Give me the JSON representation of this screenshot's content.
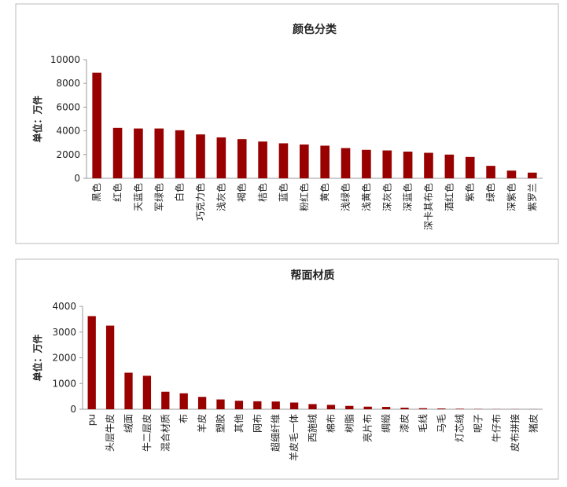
{
  "chart_data": [
    {
      "type": "bar",
      "title": "颜色分类",
      "y_label": "单位：万件",
      "color": "#990000",
      "categories": [
        "黑色",
        "红色",
        "天蓝色",
        "军绿色",
        "白色",
        "巧克力色",
        "浅灰色",
        "褐色",
        "桔色",
        "蓝色",
        "粉红色",
        "黄色",
        "浅绿色",
        "浅黄色",
        "深灰色",
        "深蓝色",
        "深卡其布色",
        "酒红色",
        "紫色",
        "绿色",
        "深紫色",
        "紫罗兰"
      ],
      "values": [
        8900,
        4250,
        4200,
        4200,
        4050,
        3700,
        3450,
        3300,
        3100,
        2950,
        2850,
        2750,
        2550,
        2400,
        2350,
        2250,
        2150,
        2000,
        1800,
        1050,
        650,
        480
      ],
      "ylim": [
        0,
        10000
      ],
      "yticks": [
        0,
        2000,
        4000,
        6000,
        8000,
        10000
      ],
      "grid": false
    },
    {
      "type": "bar",
      "title": "帮面材质",
      "y_label": "单位：万件",
      "color": "#990000",
      "categories": [
        "pu",
        "头层牛皮",
        "绒面",
        "牛二层皮",
        "混合材质",
        "布",
        "羊皮",
        "塑胶",
        "其他",
        "网布",
        "超细纤维",
        "羊皮毛一体",
        "西施绒",
        "棉布",
        "树脂",
        "亮片布",
        "绸缎",
        "漆皮",
        "毛线",
        "马毛",
        "灯芯绒",
        "呢子",
        "牛仔布",
        "皮布拼接",
        "猪皮"
      ],
      "values": [
        3620,
        3250,
        1420,
        1300,
        680,
        620,
        480,
        380,
        330,
        310,
        300,
        260,
        200,
        170,
        130,
        100,
        90,
        60,
        40,
        30,
        20,
        10,
        5,
        5,
        3
      ],
      "ylim": [
        0,
        4000
      ],
      "yticks": [
        0,
        1000,
        2000,
        3000,
        4000
      ],
      "grid": false
    }
  ]
}
